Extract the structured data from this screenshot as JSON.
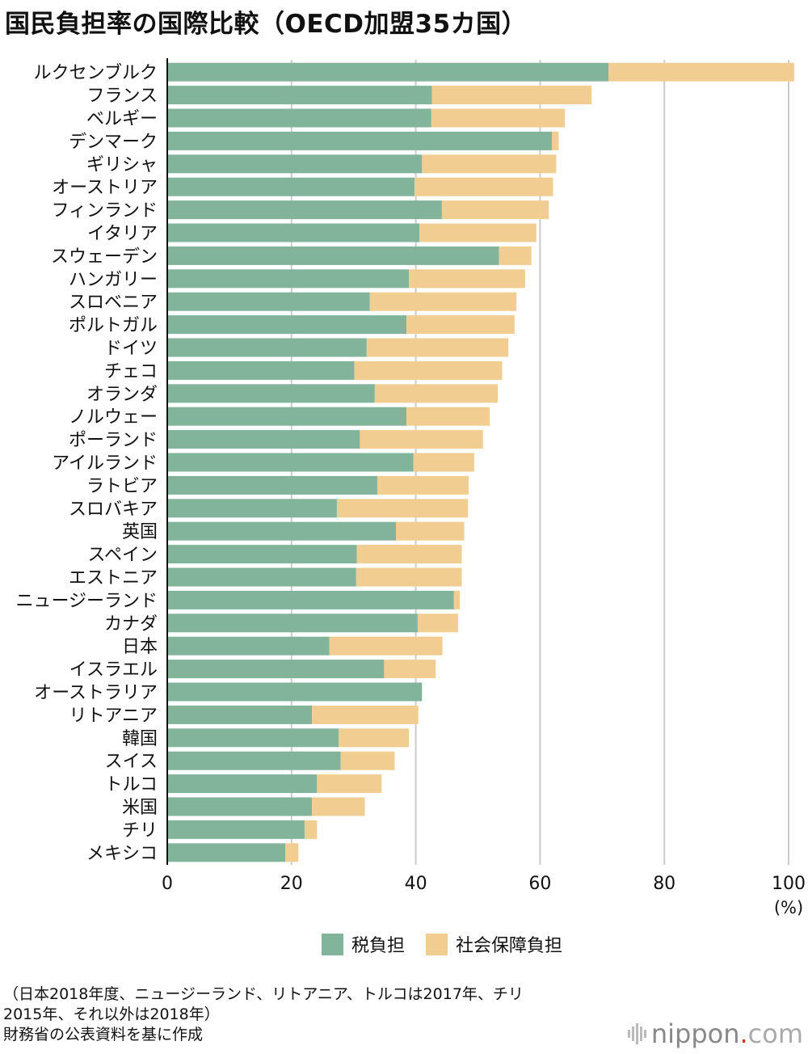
{
  "title": "国民負担率の国際比較（OECD加盟35カ国）",
  "colors": {
    "tax": "#82b49b",
    "social": "#f2cd91",
    "grid": "#cccccc"
  },
  "legend": {
    "tax": "税負担",
    "social": "社会保障負担"
  },
  "note_lines": [
    "（日本2018年度、ニュージーランド、リトアニア、トルコは2017年、チリ",
    "2015年、それ以外は2018年）",
    "財務省の公表資料を基に作成"
  ],
  "brand": {
    "name": "nippon",
    "dot": ".",
    "tld": "com"
  },
  "chart_data": {
    "type": "bar",
    "orientation": "horizontal",
    "stacked": true,
    "xlim": [
      0,
      100
    ],
    "xticks": [
      "0",
      "20",
      "40",
      "60",
      "80",
      "100"
    ],
    "unit": "(%)",
    "grid": true,
    "categories": [
      "ルクセンブルク",
      "フランス",
      "ベルギー",
      "デンマーク",
      "ギリシャ",
      "オーストリア",
      "フィンランド",
      "イタリア",
      "スウェーデン",
      "ハンガリー",
      "スロベニア",
      "ポルトガル",
      "ドイツ",
      "チェコ",
      "オランダ",
      "ノルウェー",
      "ポーランド",
      "アイルランド",
      "ラトビア",
      "スロバキア",
      "英国",
      "スペイン",
      "エストニア",
      "ニュージーランド",
      "カナダ",
      "日本",
      "イスラエル",
      "オーストラリア",
      "リトアニア",
      "韓国",
      "スイス",
      "トルコ",
      "米国",
      "チリ",
      "メキシコ"
    ],
    "series": [
      {
        "name": "税負担",
        "values": [
          71.0,
          42.6,
          42.5,
          61.9,
          41.0,
          39.8,
          44.2,
          40.6,
          53.4,
          38.9,
          32.6,
          38.5,
          32.1,
          30.1,
          33.4,
          38.5,
          31.0,
          39.6,
          33.8,
          27.3,
          36.8,
          30.5,
          30.4,
          46.1,
          40.3,
          26.1,
          34.9,
          41.0,
          23.3,
          27.6,
          27.9,
          24.1,
          23.3,
          22.1,
          19.0
        ]
      },
      {
        "name": "社会保障負担",
        "values": [
          29.9,
          25.7,
          21.5,
          1.1,
          21.6,
          22.3,
          17.2,
          18.8,
          5.2,
          18.7,
          23.6,
          17.4,
          22.8,
          23.8,
          19.8,
          13.4,
          19.8,
          9.8,
          14.7,
          21.1,
          11.0,
          16.9,
          17.0,
          1.0,
          6.5,
          18.2,
          8.3,
          0.0,
          17.1,
          11.3,
          8.7,
          10.4,
          8.5,
          2.0,
          2.1
        ]
      }
    ]
  }
}
